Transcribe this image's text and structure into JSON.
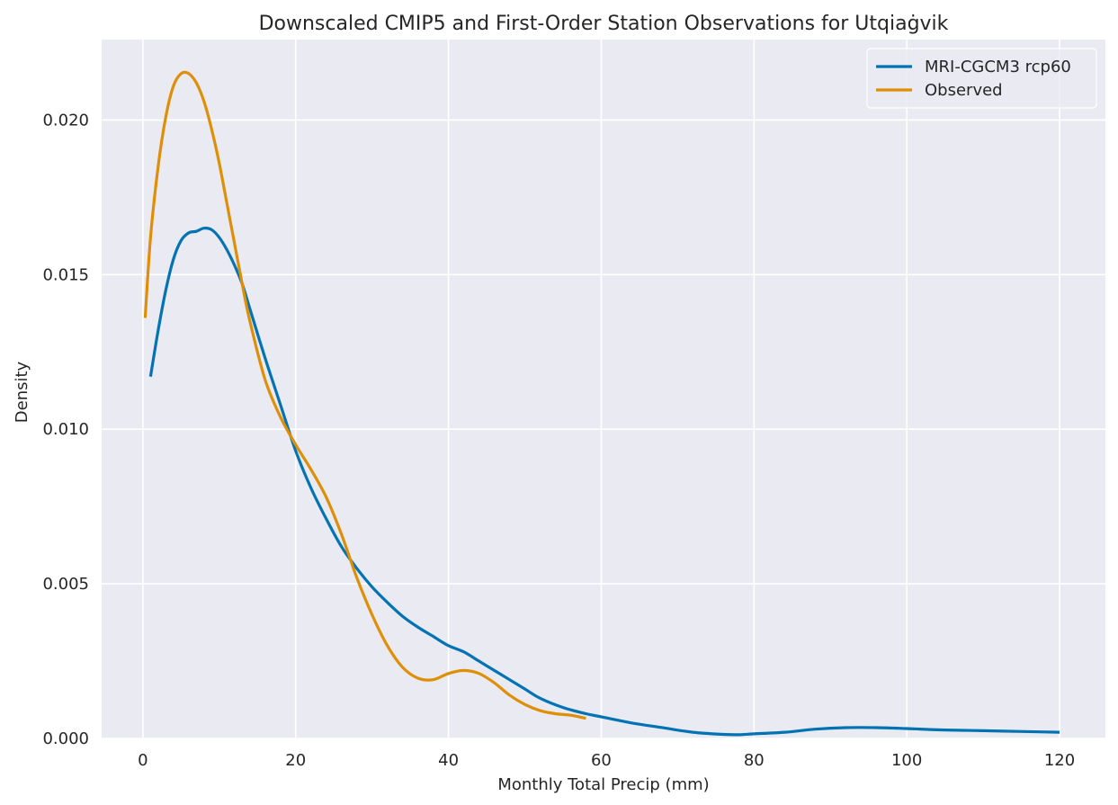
{
  "chart_data": {
    "type": "line",
    "title": "Downscaled CMIP5 and First-Order Station Observations for Utqiaġvik",
    "xlabel": "Monthly Total Precip (mm)",
    "ylabel": "Density",
    "xlim": [
      -5.4,
      126
    ],
    "ylim": [
      0,
      0.0226
    ],
    "xticks": [
      0,
      20,
      40,
      60,
      80,
      100,
      120
    ],
    "xtick_labels": [
      "0",
      "20",
      "40",
      "60",
      "80",
      "100",
      "120"
    ],
    "yticks": [
      0,
      0.005,
      0.01,
      0.015,
      0.02
    ],
    "ytick_labels": [
      "0.000",
      "0.005",
      "0.010",
      "0.015",
      "0.020"
    ],
    "grid": true,
    "legend_position": "top-right",
    "background_color": "#eaeaf2",
    "grid_color": "#ffffff",
    "series": [
      {
        "name": "MRI-CGCM3 rcp60",
        "color": "#0173b2",
        "x": [
          1.0,
          2,
          3,
          4,
          5,
          6,
          7,
          8,
          9,
          10,
          11,
          12,
          13,
          14,
          16,
          18,
          20,
          22,
          24,
          26,
          28,
          30,
          32,
          34,
          36,
          38,
          40,
          42,
          44,
          46,
          48,
          50,
          52,
          55,
          58,
          60,
          64,
          68,
          72,
          76,
          78,
          80,
          84,
          88,
          92,
          96,
          100,
          104,
          108,
          112,
          116,
          120
        ],
        "y": [
          0.0117,
          0.0132,
          0.0145,
          0.0155,
          0.0161,
          0.01635,
          0.0164,
          0.0165,
          0.01645,
          0.0162,
          0.0158,
          0.0153,
          0.0147,
          0.0139,
          0.0123,
          0.0108,
          0.0093,
          0.0081,
          0.0071,
          0.0062,
          0.0055,
          0.0049,
          0.0044,
          0.00395,
          0.0036,
          0.0033,
          0.003,
          0.0028,
          0.0025,
          0.0022,
          0.0019,
          0.0016,
          0.0013,
          0.001,
          0.0008,
          0.0007,
          0.0005,
          0.00035,
          0.0002,
          0.00013,
          0.00012,
          0.00015,
          0.0002,
          0.0003,
          0.00035,
          0.00035,
          0.00032,
          0.00028,
          0.00026,
          0.00024,
          0.00022,
          0.0002
        ]
      },
      {
        "name": "Observed",
        "color": "#de8f05",
        "x": [
          0.3,
          1,
          2,
          3,
          4,
          5,
          6,
          7,
          8,
          9,
          10,
          11,
          12,
          13,
          14,
          16,
          18,
          20,
          22,
          24,
          26,
          28,
          30,
          32,
          34,
          36,
          38,
          40,
          42,
          44,
          46,
          48,
          50,
          52,
          54,
          56,
          58
        ],
        "y": [
          0.0136,
          0.0162,
          0.0185,
          0.0201,
          0.0211,
          0.0215,
          0.0215,
          0.0212,
          0.0206,
          0.0197,
          0.0186,
          0.0173,
          0.016,
          0.0147,
          0.0135,
          0.0116,
          0.0104,
          0.0095,
          0.0087,
          0.0078,
          0.0066,
          0.0052,
          0.004,
          0.003,
          0.0023,
          0.00195,
          0.0019,
          0.0021,
          0.0022,
          0.0021,
          0.0018,
          0.0014,
          0.0011,
          0.0009,
          0.0008,
          0.00075,
          0.00065
        ]
      }
    ]
  }
}
